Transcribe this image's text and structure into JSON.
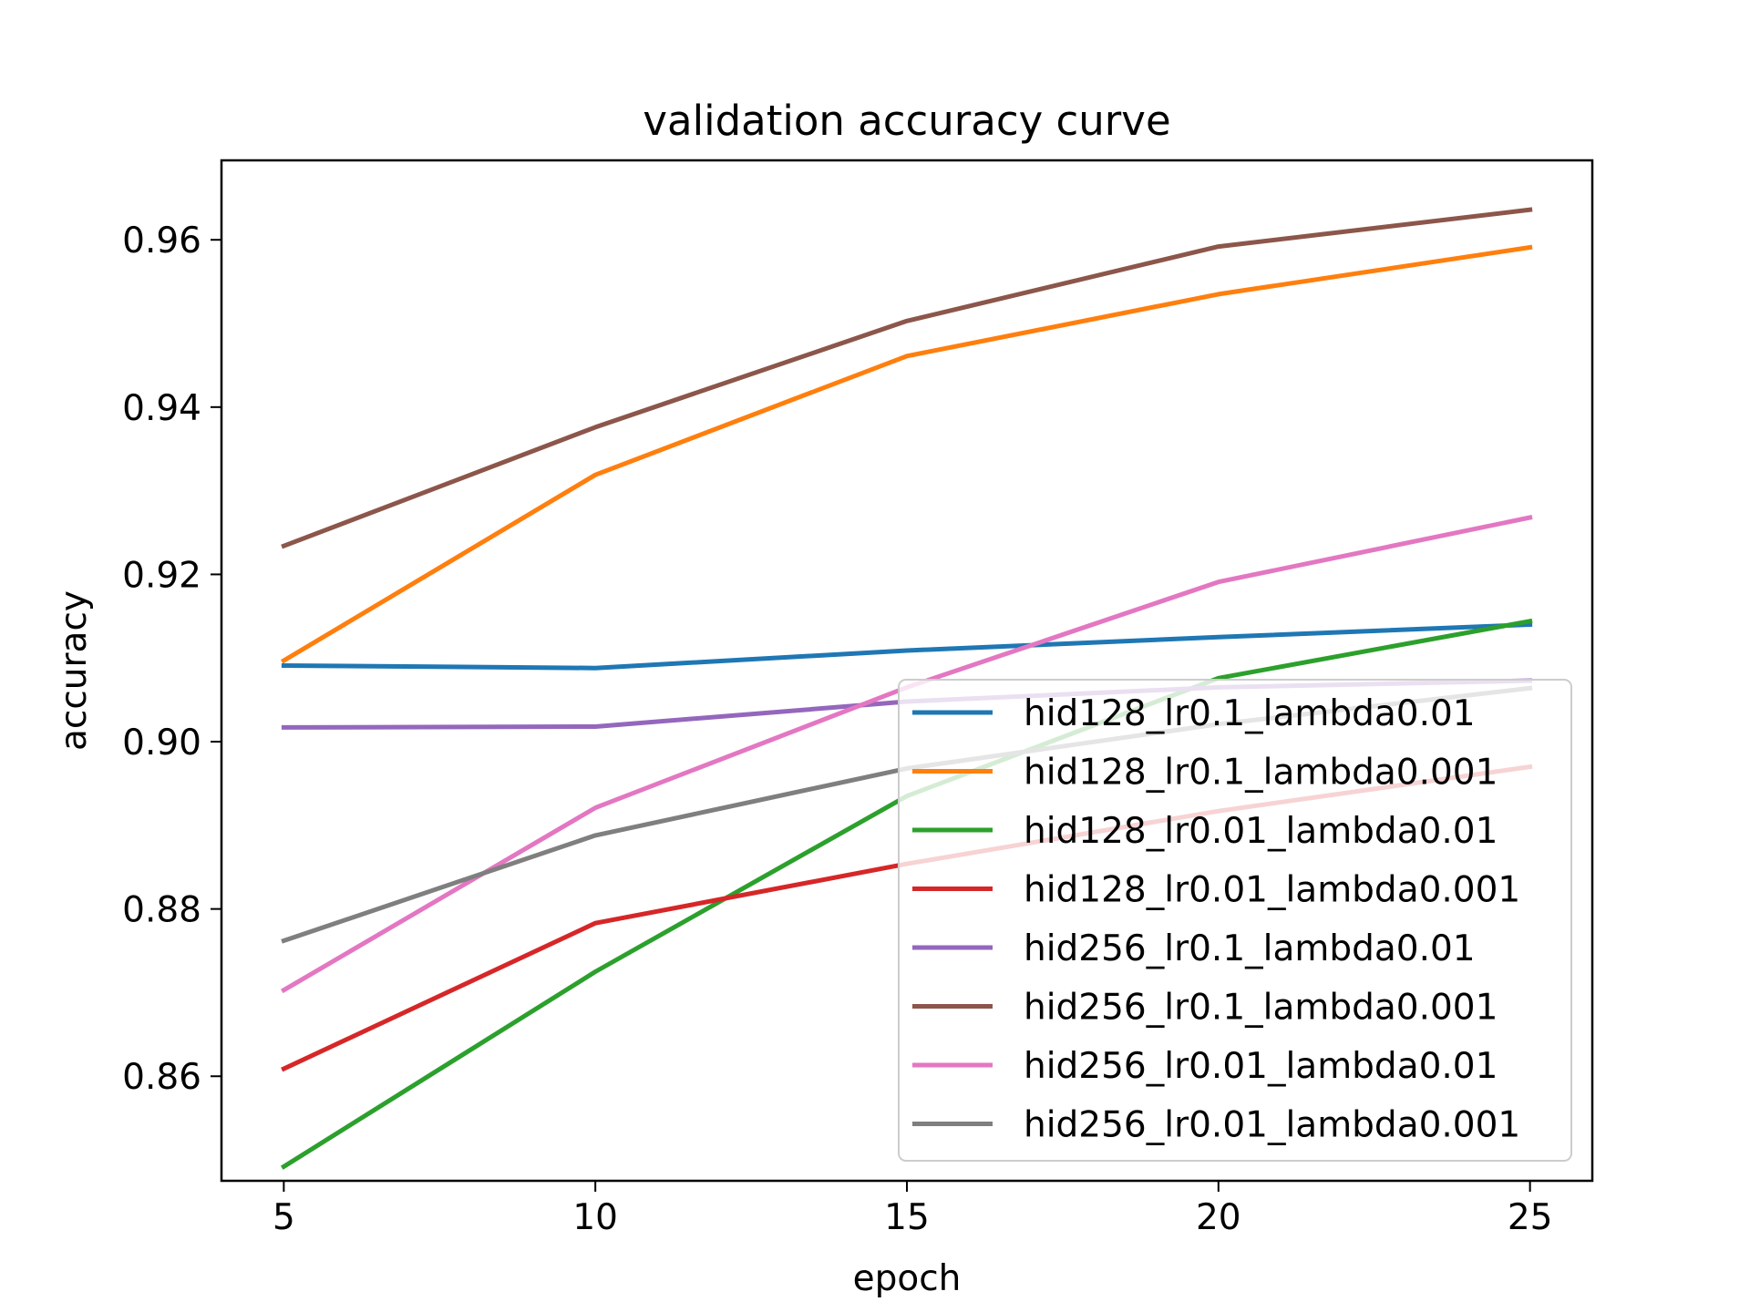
{
  "chart_data": {
    "type": "line",
    "title": "validation accuracy curve",
    "xlabel": "epoch",
    "ylabel": "accuracy",
    "x": [
      5,
      10,
      15,
      20,
      25
    ],
    "xlim": [
      4,
      26
    ],
    "ylim": [
      0.8475,
      0.9695
    ],
    "xticks": [
      "5",
      "10",
      "15",
      "20",
      "25"
    ],
    "yticks": [
      "0.86",
      "0.88",
      "0.90",
      "0.92",
      "0.94",
      "0.96"
    ],
    "grid": false,
    "legend": "lower-right",
    "series": [
      {
        "name": "hid128_lr0.1_lambda0.01",
        "color": "#1f77b4",
        "values": [
          0.9091,
          0.9088,
          0.9109,
          0.9125,
          0.914
        ]
      },
      {
        "name": "hid128_lr0.1_lambda0.001",
        "color": "#ff7f0e",
        "values": [
          0.9097,
          0.9319,
          0.9461,
          0.9535,
          0.9591
        ]
      },
      {
        "name": "hid128_lr0.01_lambda0.01",
        "color": "#2ca02c",
        "values": [
          0.8492,
          0.8725,
          0.8935,
          0.9076,
          0.9144
        ]
      },
      {
        "name": "hid128_lr0.01_lambda0.001",
        "color": "#d62728",
        "values": [
          0.8609,
          0.8783,
          0.8854,
          0.8917,
          0.897
        ]
      },
      {
        "name": "hid256_lr0.1_lambda0.01",
        "color": "#9467bd",
        "values": [
          0.9017,
          0.9018,
          0.9048,
          0.9065,
          0.9073
        ]
      },
      {
        "name": "hid256_lr0.1_lambda0.001",
        "color": "#8c564b",
        "values": [
          0.9234,
          0.9376,
          0.9503,
          0.9592,
          0.9636
        ]
      },
      {
        "name": "hid256_lr0.01_lambda0.01",
        "color": "#e377c2",
        "values": [
          0.8703,
          0.8921,
          0.9065,
          0.9191,
          0.9268
        ]
      },
      {
        "name": "hid256_lr0.01_lambda0.001",
        "color": "#7f7f7f",
        "values": [
          0.8762,
          0.8888,
          0.8968,
          0.9021,
          0.9064
        ]
      }
    ]
  }
}
